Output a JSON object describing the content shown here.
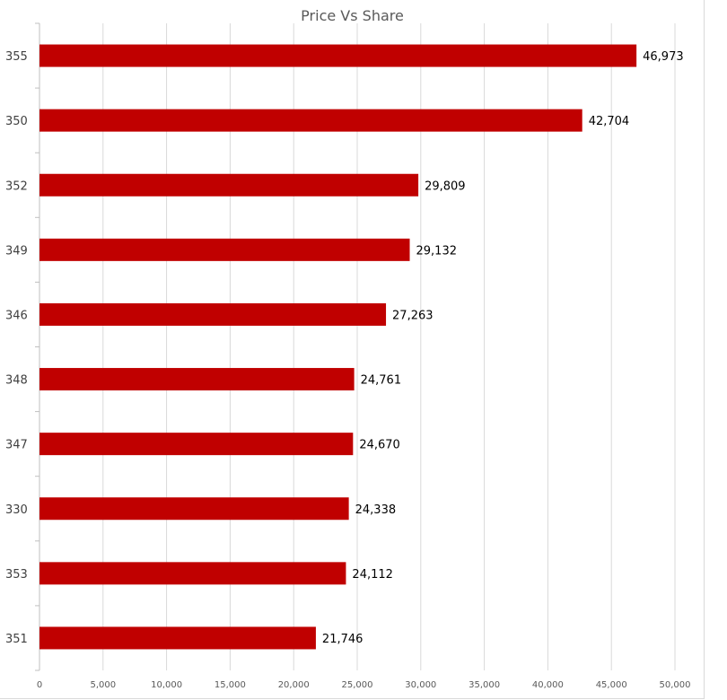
{
  "chart_data": {
    "type": "bar",
    "orientation": "horizontal",
    "title": "Price Vs Share",
    "xlabel": "",
    "ylabel": "",
    "categories": [
      "355",
      "350",
      "352",
      "349",
      "346",
      "348",
      "347",
      "330",
      "353",
      "351"
    ],
    "values": [
      46973,
      42704,
      29809,
      29132,
      27263,
      24761,
      24670,
      24338,
      24112,
      21746
    ],
    "data_labels": [
      "46,973",
      "42,704",
      "29,809",
      "29,132",
      "27,263",
      "24,761",
      "24,670",
      "24,338",
      "24,112",
      "21,746"
    ],
    "xlim": [
      0,
      50000
    ],
    "x_ticks": [
      0,
      5000,
      10000,
      15000,
      20000,
      25000,
      30000,
      35000,
      40000,
      45000,
      50000
    ],
    "x_tick_labels": [
      "0",
      "5,000",
      "10,000",
      "15,000",
      "20,000",
      "25,000",
      "30,000",
      "35,000",
      "40,000",
      "45,000",
      "50,000"
    ],
    "grid": "vertical",
    "bar_color": "#c00000",
    "grid_color": "#d9d9d9",
    "legend": "none"
  }
}
